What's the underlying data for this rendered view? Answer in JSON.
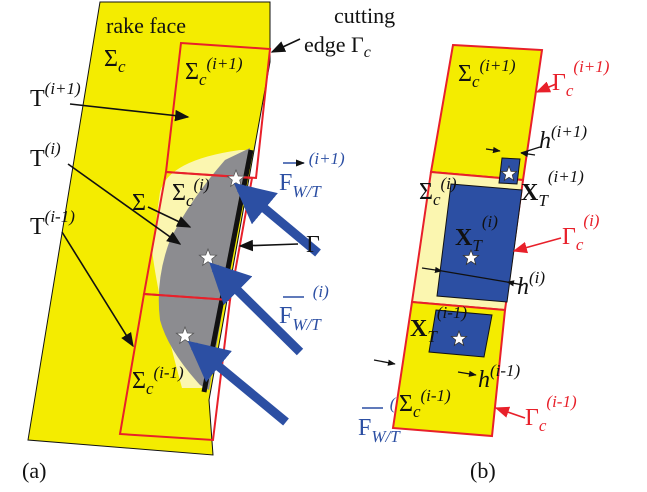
{
  "colors": {
    "face_yellow": "#f4ec00",
    "pale_yellow": "#fbf6b0",
    "red": "#e8202a",
    "blue": "#2c4fa3",
    "gray": "#8c8c90",
    "black": "#111111"
  },
  "panel_a": {
    "rake_face": "rake face",
    "sigma_c": "Σ",
    "sigma_c_sub": "c",
    "cutting_edge_line1": "cutting",
    "cutting_edge_line2": "edge Γ",
    "cutting_edge_sub": "c",
    "T_next": "T",
    "T_next_sup": "(i+1)",
    "T_cur": "T",
    "T_cur_sup": "(i)",
    "T_prev": "T",
    "T_prev_sup": "(i-1)",
    "sigma": "Σ",
    "gamma": "Γ",
    "sigma_next": "Σ",
    "sigma_next_sub": "c",
    "sigma_next_sup": "(i+1)",
    "sigma_cur": "Σ",
    "sigma_cur_sub": "c",
    "sigma_cur_sup": "(i)",
    "sigma_prev": "Σ",
    "sigma_prev_sub": "c",
    "sigma_prev_sup": "(i-1)",
    "force_F": "F",
    "force_sub": "W/T",
    "force_next_sup": "(i+1)",
    "force_cur_sup": "(i)",
    "force_prev_sup": "(i-1)",
    "caption": "(a)"
  },
  "panel_b": {
    "sigma_next": "Σ",
    "sigma_next_sub": "c",
    "sigma_next_sup": "(i+1)",
    "sigma_cur": "Σ",
    "sigma_cur_sub": "c",
    "sigma_cur_sup": "(i)",
    "sigma_prev": "Σ",
    "sigma_prev_sub": "c",
    "sigma_prev_sup": "(i-1)",
    "gamma_next": "Γ",
    "gamma_next_sub": "c",
    "gamma_next_sup": "(i+1)",
    "gamma_cur": "Γ",
    "gamma_cur_sub": "c",
    "gamma_cur_sup": "(i)",
    "gamma_prev": "Γ",
    "gamma_prev_sub": "c",
    "gamma_prev_sup": "(i-1)",
    "h_next": "h",
    "h_next_sup": "(i+1)",
    "h_cur": "h",
    "h_cur_sup": "(i)",
    "h_prev": "h",
    "h_prev_sup": "(i-1)",
    "x_next": "X",
    "x_next_sub": "T",
    "x_next_sup": "(i+1)",
    "x_cur": "X",
    "x_cur_sub": "T",
    "x_cur_sup": "(i)",
    "x_prev": "X",
    "x_prev_sub": "T",
    "x_prev_sup": "(i-1)",
    "caption": "(b)"
  }
}
